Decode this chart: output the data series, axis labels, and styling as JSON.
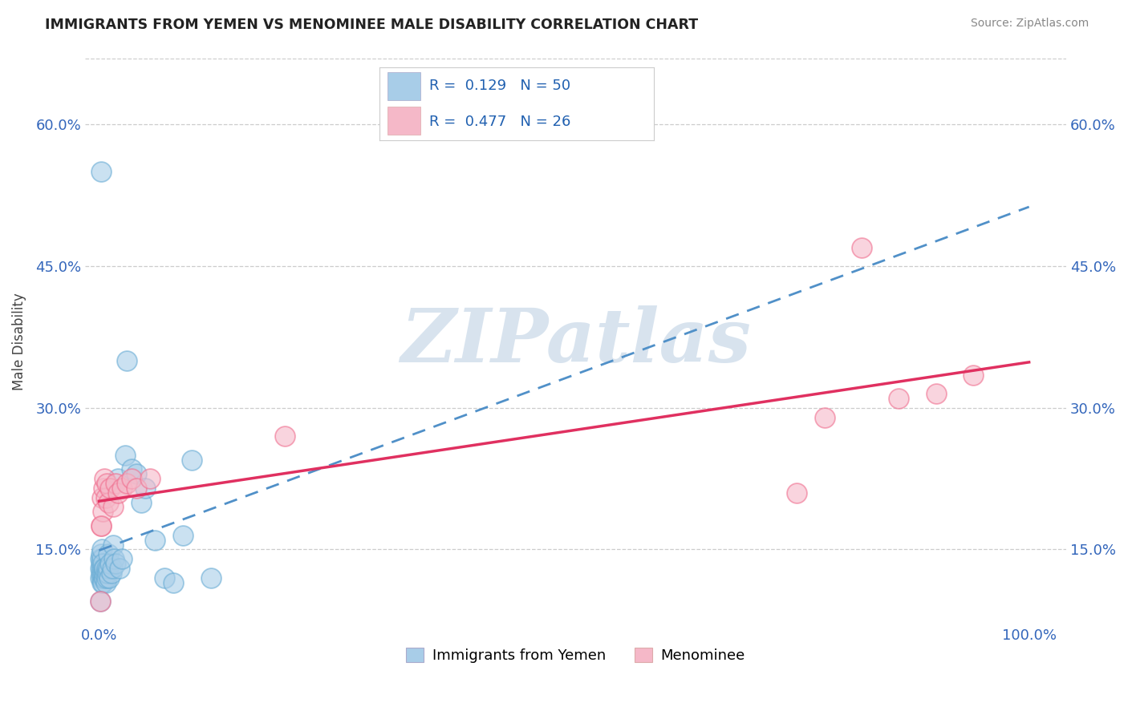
{
  "title": "IMMIGRANTS FROM YEMEN VS MENOMINEE MALE DISABILITY CORRELATION CHART",
  "source": "Source: ZipAtlas.com",
  "ylabel": "Male Disability",
  "xlim": [
    -0.015,
    1.04
  ],
  "ylim": [
    0.07,
    0.67
  ],
  "ytick_vals": [
    0.15,
    0.3,
    0.45,
    0.6
  ],
  "ytick_labels": [
    "15.0%",
    "30.0%",
    "45.0%",
    "60.0%"
  ],
  "xtick_vals": [
    0.0,
    1.0
  ],
  "xtick_labels": [
    "0.0%",
    "100.0%"
  ],
  "blue_R": 0.129,
  "blue_N": 50,
  "pink_R": 0.477,
  "pink_N": 26,
  "blue_scatter_color": "#a8cde8",
  "pink_scatter_color": "#f5b8c8",
  "blue_edge_color": "#6aadd5",
  "pink_edge_color": "#f07090",
  "blue_line_color": "#5090c8",
  "pink_line_color": "#e03060",
  "watermark_text": "ZIPatlas",
  "watermark_color": "#c8d8e8",
  "legend_box_color": "#cccccc",
  "blue_patch_color": "#a8cde8",
  "pink_patch_color": "#f5b8c8",
  "rn_text_color": "#2060b0",
  "blue_x": [
    0.001,
    0.001,
    0.001,
    0.002,
    0.002,
    0.002,
    0.003,
    0.003,
    0.003,
    0.003,
    0.003,
    0.004,
    0.004,
    0.004,
    0.005,
    0.005,
    0.006,
    0.006,
    0.006,
    0.007,
    0.007,
    0.008,
    0.008,
    0.009,
    0.01,
    0.01,
    0.011,
    0.012,
    0.013,
    0.014,
    0.015,
    0.016,
    0.018,
    0.02,
    0.022,
    0.025,
    0.028,
    0.03,
    0.035,
    0.04,
    0.045,
    0.05,
    0.06,
    0.07,
    0.08,
    0.09,
    0.1,
    0.12,
    0.001,
    0.002
  ],
  "blue_y": [
    0.13,
    0.14,
    0.12,
    0.135,
    0.125,
    0.145,
    0.13,
    0.12,
    0.14,
    0.15,
    0.115,
    0.125,
    0.115,
    0.135,
    0.12,
    0.13,
    0.12,
    0.125,
    0.13,
    0.115,
    0.125,
    0.12,
    0.13,
    0.125,
    0.145,
    0.13,
    0.12,
    0.135,
    0.125,
    0.13,
    0.155,
    0.14,
    0.135,
    0.225,
    0.13,
    0.14,
    0.25,
    0.35,
    0.235,
    0.23,
    0.2,
    0.215,
    0.16,
    0.12,
    0.115,
    0.165,
    0.245,
    0.12,
    0.095,
    0.55
  ],
  "pink_x": [
    0.001,
    0.002,
    0.003,
    0.004,
    0.005,
    0.006,
    0.007,
    0.008,
    0.01,
    0.012,
    0.015,
    0.018,
    0.02,
    0.025,
    0.03,
    0.035,
    0.04,
    0.055,
    0.75,
    0.78,
    0.82,
    0.86,
    0.9,
    0.94,
    0.002,
    0.2
  ],
  "pink_y": [
    0.095,
    0.175,
    0.205,
    0.19,
    0.215,
    0.225,
    0.205,
    0.22,
    0.2,
    0.215,
    0.195,
    0.22,
    0.21,
    0.215,
    0.22,
    0.225,
    0.215,
    0.225,
    0.21,
    0.29,
    0.47,
    0.31,
    0.315,
    0.335,
    0.175,
    0.27
  ],
  "legend_series": [
    {
      "label": "Immigrants from Yemen",
      "color": "#a8cde8"
    },
    {
      "label": "Menominee",
      "color": "#f5b8c8"
    }
  ]
}
